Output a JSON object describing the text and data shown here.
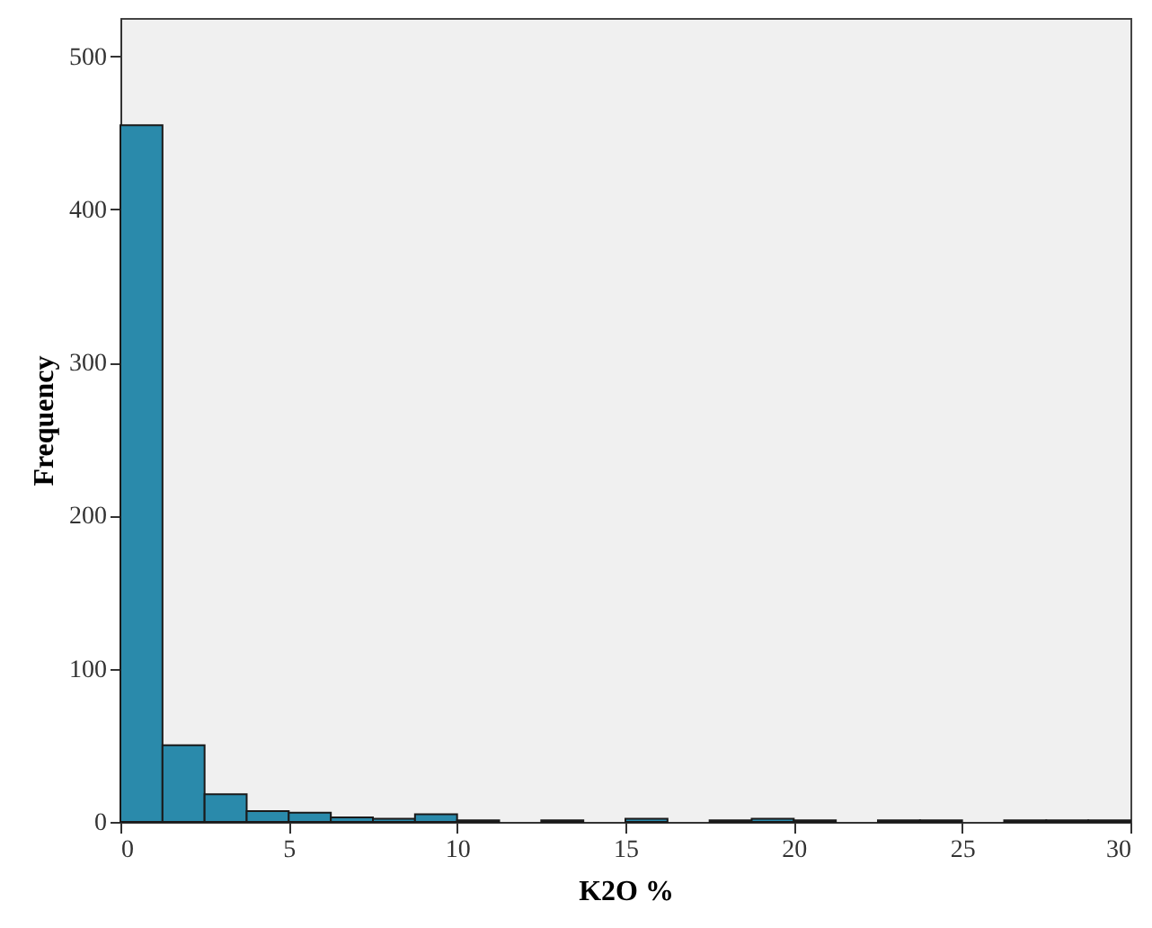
{
  "chart_data": {
    "type": "histogram",
    "xlabel": "K2O %",
    "ylabel": "Frequency",
    "bins": [
      0,
      1.25,
      2.5,
      3.75,
      5,
      6.25,
      7.5,
      8.75,
      10,
      11.25,
      12.5,
      13.75,
      15,
      16.25,
      17.5,
      18.75,
      20,
      21.25,
      22.5,
      23.75,
      25,
      26.25,
      27.5,
      28.75,
      30
    ],
    "values": [
      455,
      50,
      18,
      7,
      6,
      3,
      2,
      5,
      1,
      0,
      1,
      0,
      2,
      0,
      1,
      2,
      1,
      0,
      1,
      1,
      0,
      1,
      1,
      1
    ],
    "color": "#2a8aab",
    "xlim": [
      0,
      30
    ],
    "xticks": [
      0,
      5,
      10,
      15,
      20,
      25,
      30
    ],
    "ylim": [
      0,
      525
    ],
    "yticks": [
      0,
      100,
      200,
      300,
      400,
      500
    ],
    "grid": false
  }
}
